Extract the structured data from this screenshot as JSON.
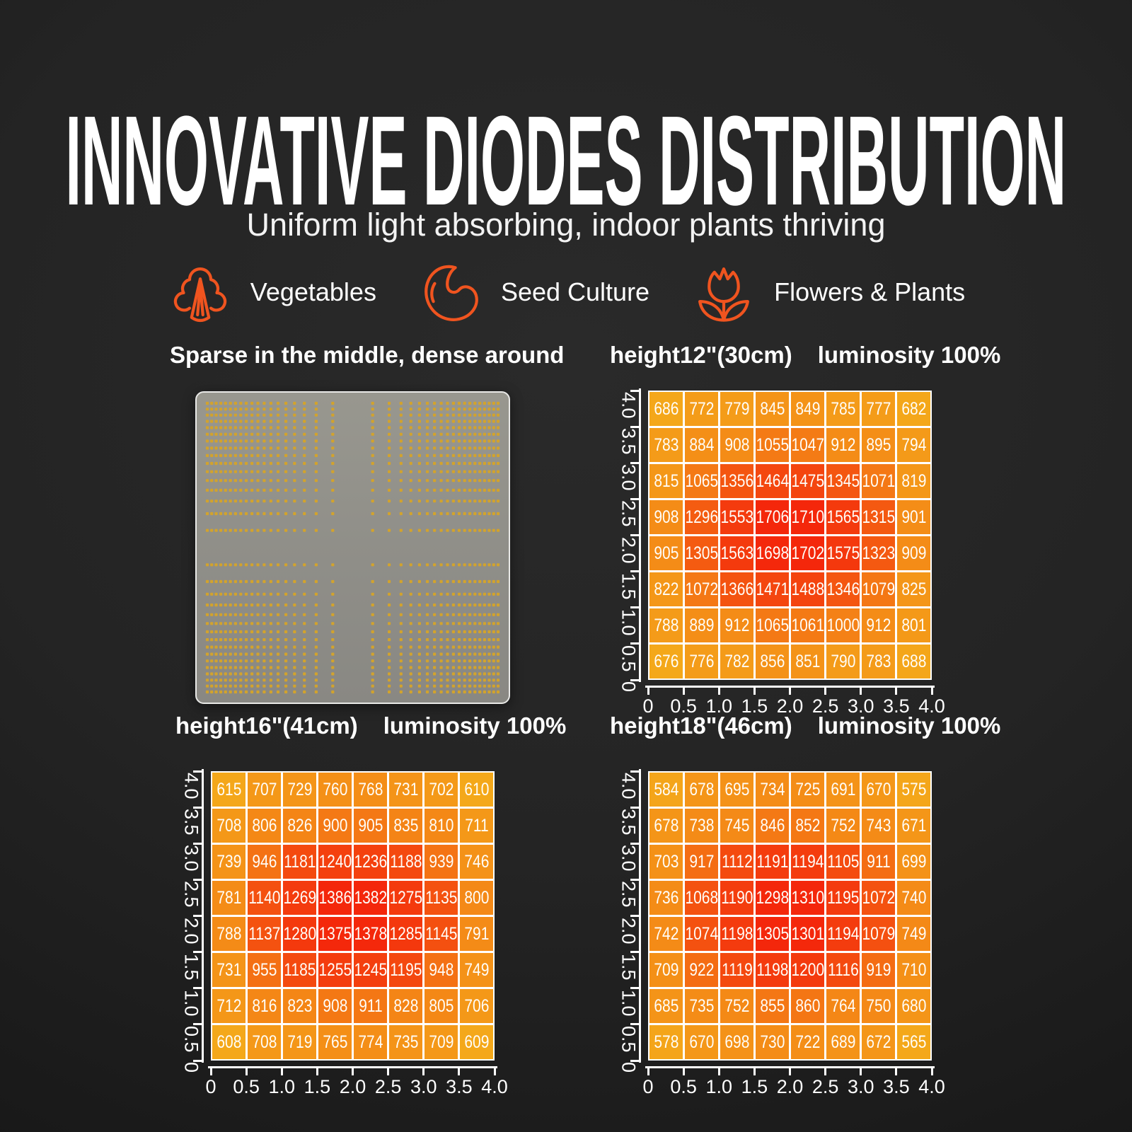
{
  "page": {
    "title": "INNOVATIVE DIODES DISTRIBUTION",
    "subtitle": "Uniform light absorbing, indoor plants thriving"
  },
  "legend": [
    {
      "id": "vegetables",
      "icon": "broccoli-icon",
      "label": "Vegetables"
    },
    {
      "id": "seed-culture",
      "icon": "bean-seed-icon",
      "label": "Seed Culture"
    },
    {
      "id": "flowers-plants",
      "icon": "tulip-icon",
      "label": "Flowers & Plants"
    }
  ],
  "board_panel": {
    "title": "Sparse in the middle, dense around",
    "dot_cols": 38,
    "dot_rows": 32
  },
  "colors": {
    "accent_orange": "#F0541F",
    "heat_low": "#F5A819",
    "heat_high": "#F23B10",
    "board_gray": "#8F8E88",
    "led_dot_yellow": "#D2A32D",
    "background": "#242424",
    "text_white": "#FFFFFF"
  },
  "chart_data": [
    {
      "type": "heatmap",
      "title": {
        "height": "height12\"(30cm)",
        "luminosity": "luminosity 100%"
      },
      "x_ticks": [
        "0",
        "0.5",
        "1.0",
        "1.5",
        "2.0",
        "2.5",
        "3.0",
        "3.5",
        "4.0"
      ],
      "y_ticks": [
        "4.0",
        "3.5",
        "3.0",
        "2.5",
        "2.0",
        "1.5",
        "1.0",
        "0.5",
        "0"
      ],
      "x_range": [
        0,
        4.0
      ],
      "y_range": [
        0,
        4.0
      ],
      "legend_position": "none",
      "grid_lines": "white",
      "grid": [
        [
          686,
          772,
          779,
          845,
          849,
          785,
          777,
          682
        ],
        [
          783,
          884,
          908,
          1055,
          1047,
          912,
          895,
          794
        ],
        [
          815,
          1065,
          1356,
          1464,
          1475,
          1345,
          1071,
          819
        ],
        [
          908,
          1296,
          1553,
          1706,
          1710,
          1565,
          1315,
          901
        ],
        [
          905,
          1305,
          1563,
          1698,
          1702,
          1575,
          1323,
          909
        ],
        [
          822,
          1072,
          1366,
          1471,
          1488,
          1346,
          1079,
          825
        ],
        [
          788,
          889,
          912,
          1065,
          1061,
          1000,
          912,
          801
        ],
        [
          676,
          776,
          782,
          856,
          851,
          790,
          783,
          688
        ]
      ]
    },
    {
      "type": "heatmap",
      "title": {
        "height": "height16\"(41cm)",
        "luminosity": "luminosity 100%"
      },
      "x_ticks": [
        "0",
        "0.5",
        "1.0",
        "1.5",
        "2.0",
        "2.5",
        "3.0",
        "3.5",
        "4.0"
      ],
      "y_ticks": [
        "4.0",
        "3.5",
        "3.0",
        "2.5",
        "2.0",
        "1.5",
        "1.0",
        "0.5",
        "0"
      ],
      "x_range": [
        0,
        4.0
      ],
      "y_range": [
        0,
        4.0
      ],
      "legend_position": "none",
      "grid_lines": "white",
      "grid": [
        [
          615,
          707,
          729,
          760,
          768,
          731,
          702,
          610
        ],
        [
          708,
          806,
          826,
          900,
          905,
          835,
          810,
          711
        ],
        [
          739,
          946,
          1181,
          1240,
          1236,
          1188,
          939,
          746
        ],
        [
          781,
          1140,
          1269,
          1386,
          1382,
          1275,
          1135,
          800
        ],
        [
          788,
          1137,
          1280,
          1375,
          1378,
          1285,
          1145,
          791
        ],
        [
          731,
          955,
          1185,
          1255,
          1245,
          1195,
          948,
          749
        ],
        [
          712,
          816,
          823,
          908,
          911,
          828,
          805,
          706
        ],
        [
          608,
          708,
          719,
          765,
          774,
          735,
          709,
          609
        ]
      ]
    },
    {
      "type": "heatmap",
      "title": {
        "height": "height18\"(46cm)",
        "luminosity": "luminosity 100%"
      },
      "x_ticks": [
        "0",
        "0.5",
        "1.0",
        "1.5",
        "2.0",
        "2.5",
        "3.0",
        "3.5",
        "4.0"
      ],
      "y_ticks": [
        "4.0",
        "3.5",
        "3.0",
        "2.5",
        "2.0",
        "1.5",
        "1.0",
        "0.5",
        "0"
      ],
      "x_range": [
        0,
        4.0
      ],
      "y_range": [
        0,
        4.0
      ],
      "legend_position": "none",
      "grid_lines": "white",
      "grid": [
        [
          584,
          678,
          695,
          734,
          725,
          691,
          670,
          575
        ],
        [
          678,
          738,
          745,
          846,
          852,
          752,
          743,
          671
        ],
        [
          703,
          917,
          1112,
          1191,
          1194,
          1105,
          911,
          699
        ],
        [
          736,
          1068,
          1190,
          1298,
          1310,
          1195,
          1072,
          740
        ],
        [
          742,
          1074,
          1198,
          1305,
          1301,
          1194,
          1079,
          749
        ],
        [
          709,
          922,
          1119,
          1198,
          1200,
          1116,
          919,
          710
        ],
        [
          685,
          735,
          752,
          855,
          860,
          764,
          750,
          680
        ],
        [
          578,
          670,
          698,
          730,
          722,
          689,
          672,
          565
        ]
      ]
    }
  ]
}
